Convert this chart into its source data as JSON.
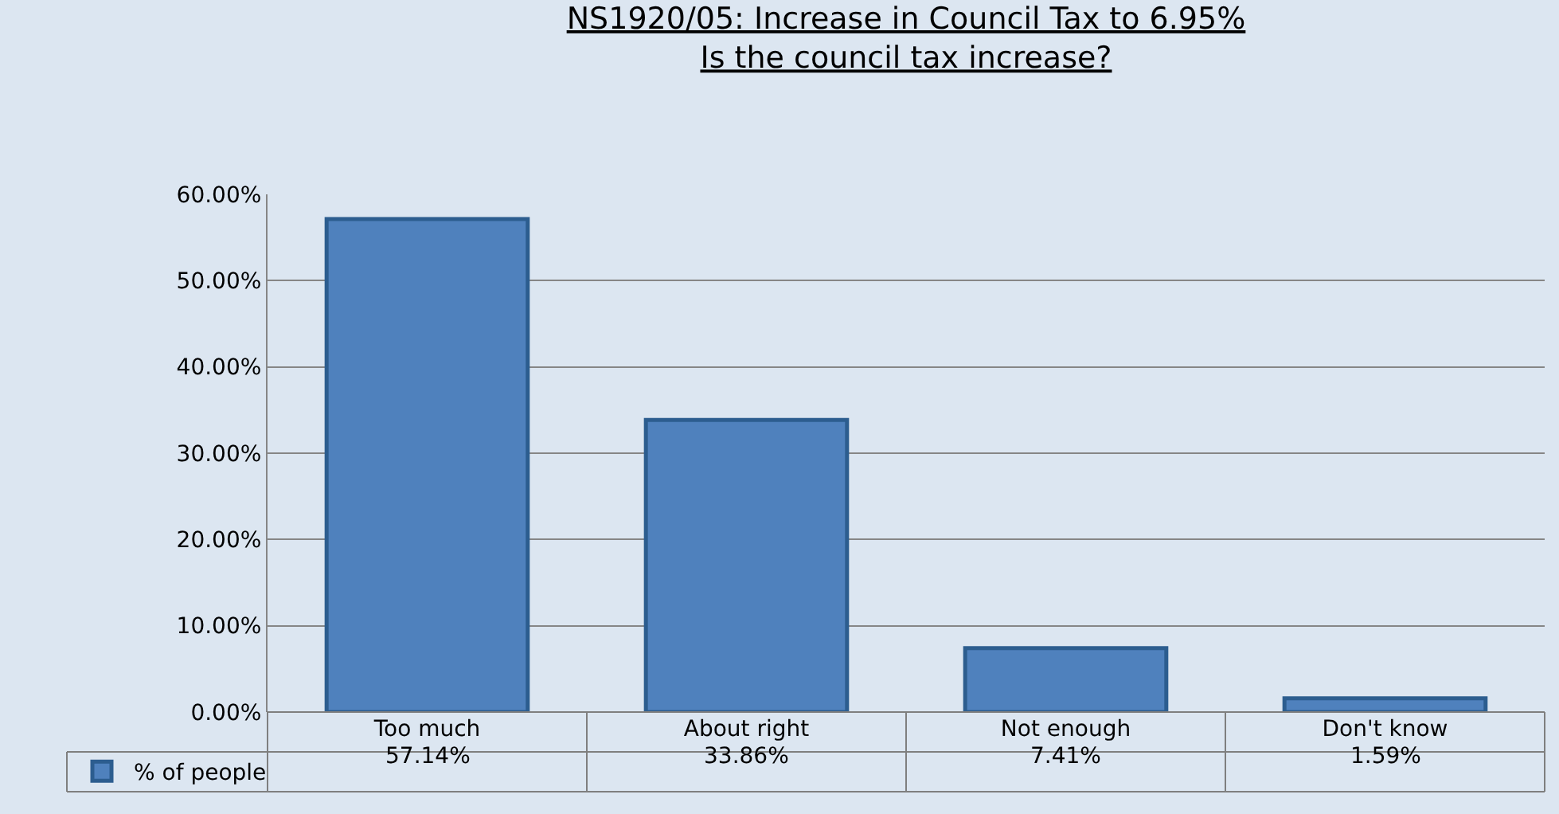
{
  "chart_data": {
    "type": "bar",
    "title": "NS1920/05: Increase in Council Tax to 6.95%\nIs the council tax increase?",
    "categories": [
      "Too much",
      "About right",
      "Not enough",
      "Don't know"
    ],
    "series": [
      {
        "name": "% of people",
        "color": "#4f81bd",
        "values": [
          57.14,
          33.86,
          7.41,
          1.59
        ]
      }
    ],
    "value_labels": [
      "57.14%",
      "33.86%",
      "7.41%",
      "1.59%"
    ],
    "ylim": [
      0,
      60
    ],
    "yticks": [
      {
        "value": 0,
        "label": "0.00%"
      },
      {
        "value": 10,
        "label": "10.00%"
      },
      {
        "value": 20,
        "label": "20.00%"
      },
      {
        "value": 30,
        "label": "30.00%"
      },
      {
        "value": 40,
        "label": "40.00%"
      },
      {
        "value": 50,
        "label": "50.00%"
      },
      {
        "value": 60,
        "label": "60.00%"
      }
    ],
    "grid": "y",
    "legend": "bottom"
  }
}
